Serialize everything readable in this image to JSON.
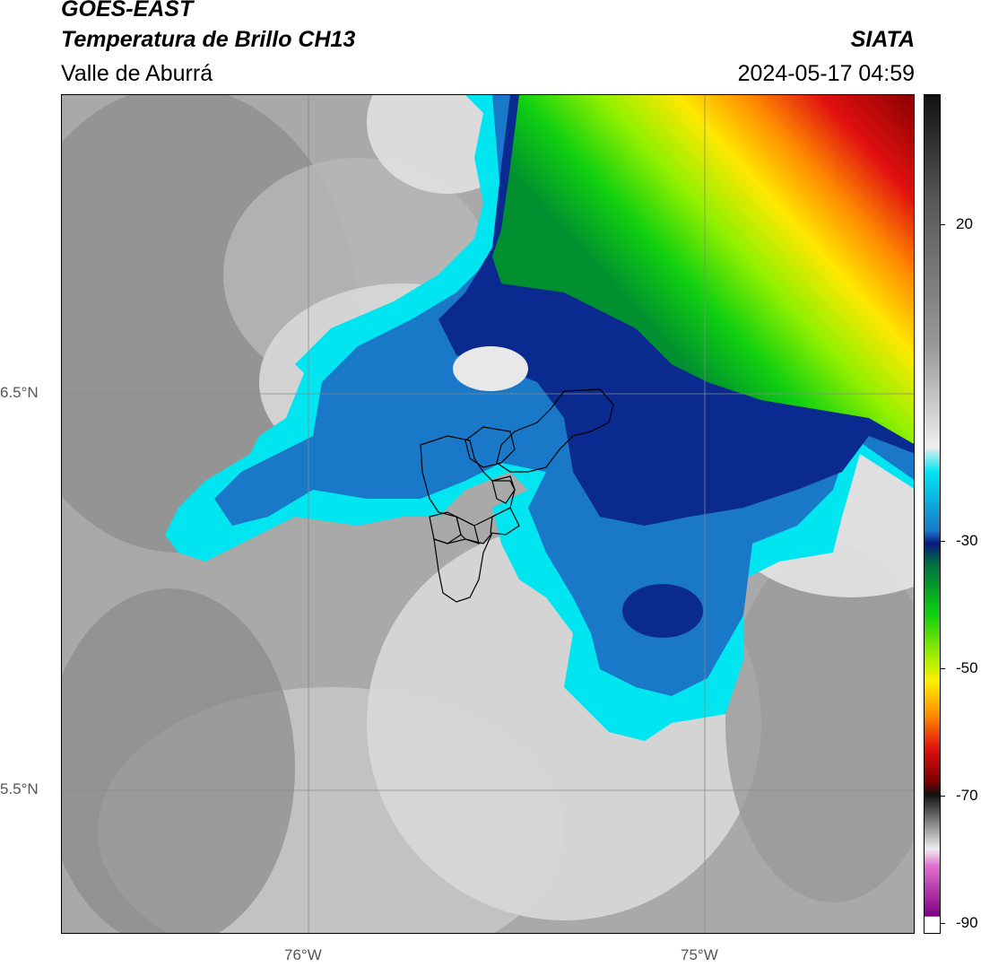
{
  "header": {
    "satellite": "GOES-EAST",
    "product": "Temperatura de Brillo CH13",
    "region": "Valle de Aburrá",
    "agency": "SIATA",
    "datetime": "2024-05-17 04:59"
  },
  "axes": {
    "lat_labels": [
      "6.5°N",
      "5.5°N"
    ],
    "lon_labels": [
      "76°W",
      "75°W"
    ]
  },
  "colorbar": {
    "tick_labels": [
      "20",
      "-30",
      "-50",
      "-70",
      "-90"
    ],
    "colors": {
      "warm_gray": "#888888",
      "cyan": "#00e5f0",
      "blue": "#1060c0",
      "navy": "#0a1a80",
      "green": "#00d000",
      "yellow": "#ffee00",
      "orange": "#ff8c00",
      "red": "#e01010",
      "darkred": "#7a0000",
      "magenta": "#c040c0"
    }
  }
}
